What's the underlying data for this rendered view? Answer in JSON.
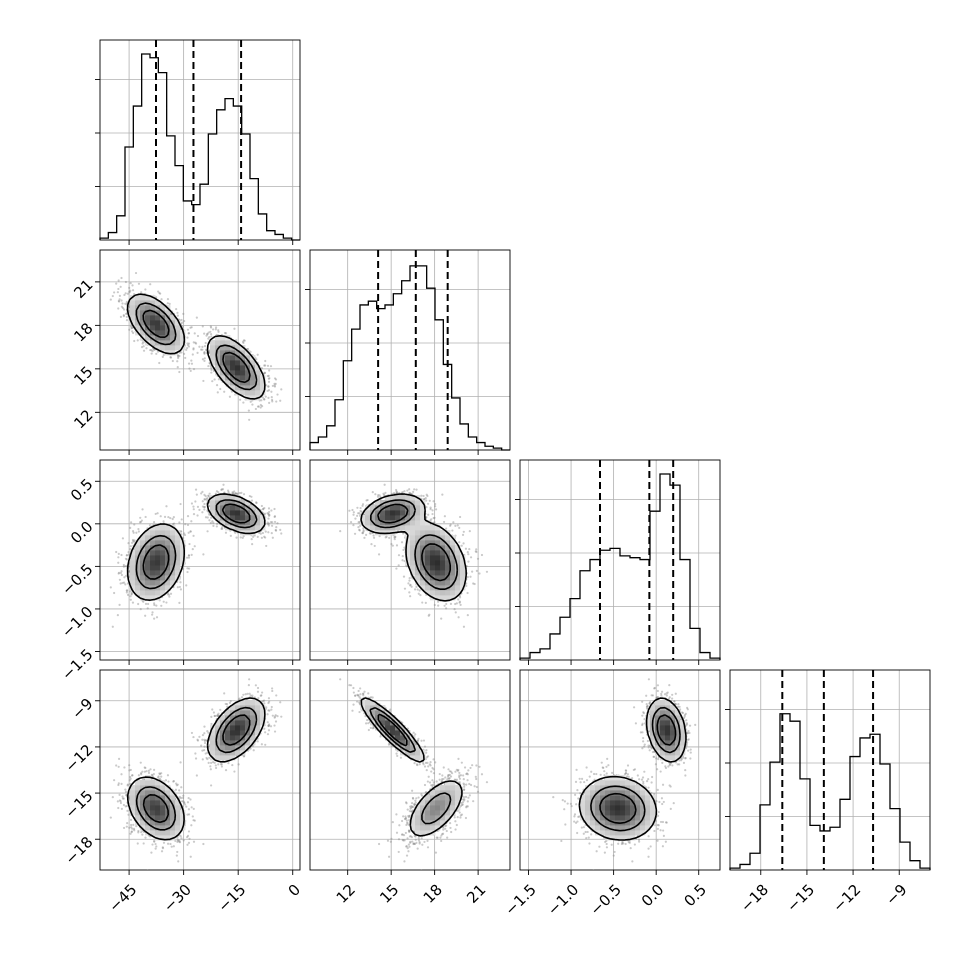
{
  "chart_data": {
    "type": "corner",
    "parameters": [
      {
        "range": [
          -53,
          2
        ],
        "ticks": [
          -45,
          -30,
          -15,
          0
        ],
        "tick_labels": [
          "−45",
          "−30",
          "−15",
          "0"
        ]
      },
      {
        "range": [
          9.4,
          23.2
        ],
        "ticks": [
          12,
          15,
          18,
          21
        ],
        "tick_labels": [
          "12",
          "15",
          "18",
          "21"
        ]
      },
      {
        "range": [
          -1.6,
          0.75
        ],
        "ticks": [
          -1.5,
          -1.0,
          -0.5,
          0.0,
          0.5
        ],
        "tick_labels": [
          "−1.5",
          "−1.0",
          "−0.5",
          "0.0",
          "0.5"
        ]
      },
      {
        "range": [
          -20,
          -7
        ],
        "ticks": [
          -18,
          -15,
          -12,
          -9
        ],
        "tick_labels": [
          "−18",
          "−15",
          "−12",
          "−9"
        ]
      }
    ],
    "histograms": [
      {
        "parameter": 0,
        "counts": [
          0.01,
          0.04,
          0.13,
          0.5,
          0.72,
          1.0,
          0.98,
          0.9,
          0.56,
          0.4,
          0.21,
          0.19,
          0.3,
          0.57,
          0.7,
          0.76,
          0.72,
          0.57,
          0.33,
          0.14,
          0.05,
          0.03,
          0.01,
          0
        ],
        "quantiles": [
          -37.6,
          -27.3,
          -14.2
        ]
      },
      {
        "parameter": 1,
        "counts": [
          0.04,
          0.07,
          0.13,
          0.27,
          0.48,
          0.65,
          0.78,
          0.8,
          0.76,
          0.78,
          0.84,
          0.91,
          0.99,
          0.99,
          0.87,
          0.7,
          0.46,
          0.28,
          0.14,
          0.07,
          0.04,
          0.02,
          0.01,
          0
        ],
        "quantiles": [
          14.1,
          16.7,
          18.9
        ]
      },
      {
        "parameter": 2,
        "counts": [
          0.01,
          0.04,
          0.06,
          0.14,
          0.23,
          0.33,
          0.48,
          0.54,
          0.59,
          0.6,
          0.56,
          0.55,
          0.54,
          0.8,
          1.0,
          0.94,
          0.54,
          0.17,
          0.04,
          0.01
        ],
        "quantiles": [
          -0.66,
          -0.08,
          0.2
        ]
      },
      {
        "parameter": 3,
        "counts": [
          0.01,
          0.03,
          0.09,
          0.35,
          0.58,
          0.84,
          0.8,
          0.49,
          0.24,
          0.21,
          0.23,
          0.38,
          0.61,
          0.71,
          0.73,
          0.57,
          0.33,
          0.15,
          0.05,
          0.01
        ],
        "quantiles": [
          -16.6,
          -13.9,
          -10.7
        ]
      }
    ],
    "modes": [
      {
        "weight": 0.5,
        "mean": [
          -37.6,
          18.1,
          -0.45,
          -16.0
        ],
        "sd": [
          3.8,
          1.0,
          0.22,
          1.0
        ]
      },
      {
        "weight": 0.5,
        "mean": [
          -15.5,
          15.1,
          0.12,
          -10.9
        ],
        "sd": [
          3.8,
          1.05,
          0.11,
          1.0
        ]
      }
    ],
    "quantiles": [
      0.16,
      0.5,
      0.84
    ],
    "title": "",
    "grid": true
  }
}
